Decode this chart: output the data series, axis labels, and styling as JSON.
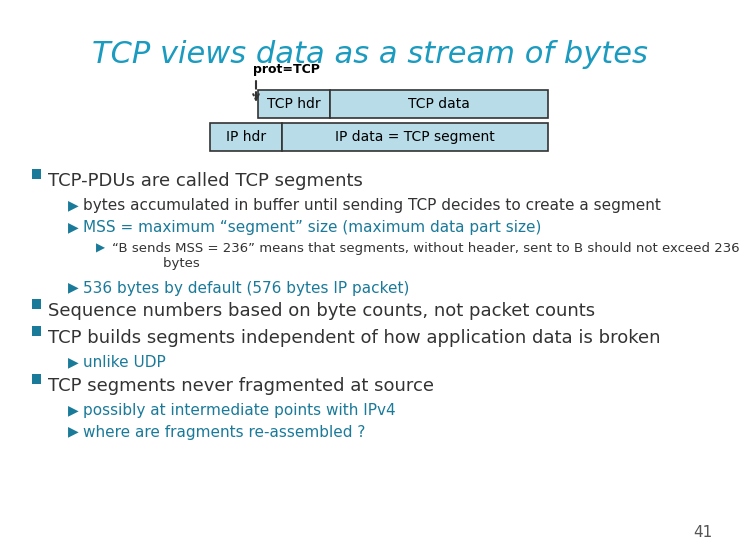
{
  "title": "TCP views data as a stream of bytes",
  "title_color": "#1a9bbf",
  "title_fontsize": 22,
  "bg_color": "#ffffff",
  "diagram": {
    "prot_label": "prot=TCP",
    "row1": [
      "TCP hdr",
      "TCP data"
    ],
    "row2": [
      "IP hdr",
      "IP data = TCP segment"
    ],
    "box_fill": "#b8dce8",
    "box_edge": "#333333",
    "text_color": "#000000"
  },
  "bullet_color": "#1a7a9a",
  "sub_color": "#1a7a9a",
  "bullets": [
    {
      "level": 0,
      "text": "TCP-PDUs are called TCP segments",
      "color": "#333333",
      "fontsize": 13
    },
    {
      "level": 1,
      "text": "bytes accumulated in buffer until sending TCP decides to create a segment",
      "color": "#333333",
      "fontsize": 11
    },
    {
      "level": 1,
      "text": "MSS = maximum “segment” size (maximum data part size)",
      "color": "#1a7a9a",
      "fontsize": 11
    },
    {
      "level": 2,
      "text": "“B sends MSS = 236” means that segments, without header, sent to B should not exceed 236 bytes",
      "color": "#333333",
      "fontsize": 9.5
    },
    {
      "level": 1,
      "text": "536 bytes by default (576 bytes IP packet)",
      "color": "#1a7a9a",
      "fontsize": 11
    },
    {
      "level": 0,
      "text": "Sequence numbers based on byte counts, not packet counts",
      "color": "#333333",
      "fontsize": 13
    },
    {
      "level": 0,
      "text": "TCP builds segments independent of how application data is broken",
      "color": "#333333",
      "fontsize": 13
    },
    {
      "level": 1,
      "text": "unlike UDP",
      "color": "#1a7a9a",
      "fontsize": 11
    },
    {
      "level": 0,
      "text": "TCP segments never fragmented at source",
      "color": "#333333",
      "fontsize": 13
    },
    {
      "level": 1,
      "text": "possibly at intermediate points with IPv4",
      "color": "#1a7a9a",
      "fontsize": 11
    },
    {
      "level": 1,
      "text": "where are fragments re-assembled ?",
      "color": "#1a7a9a",
      "fontsize": 11
    }
  ],
  "page_number": "41"
}
